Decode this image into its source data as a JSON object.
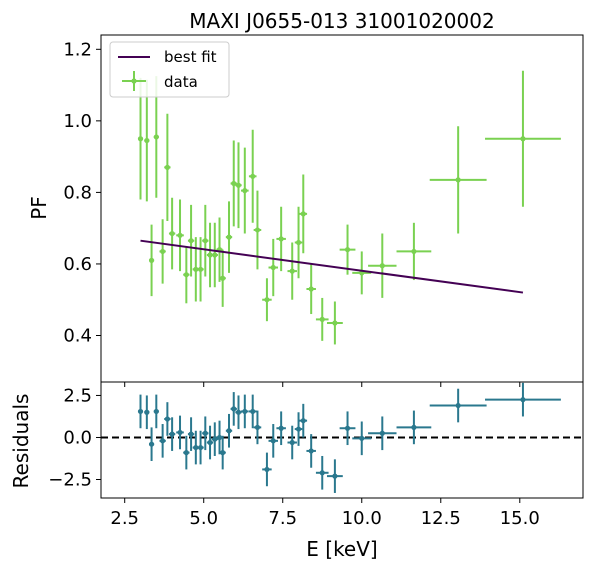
{
  "chart_data": {
    "type": "scatter",
    "title": "MAXI J0655-013 31001020002",
    "xlabel": "E [keV]",
    "xlim": [
      1.75,
      17.0
    ],
    "xticks": [
      2.5,
      5.0,
      7.5,
      10.0,
      12.5,
      15.0
    ],
    "xtick_labels": [
      "2.5",
      "5.0",
      "7.5",
      "10.0",
      "12.5",
      "15.0"
    ],
    "top_panel": {
      "ylabel": "PF",
      "ylim": [
        0.27,
        1.24
      ],
      "yticks": [
        0.4,
        0.6,
        0.8,
        1.0,
        1.2
      ],
      "ytick_labels": [
        "0.4",
        "0.6",
        "0.8",
        "1.0",
        "1.2"
      ],
      "legend": {
        "position": "upper-left",
        "fit_label": "best fit",
        "data_label": "data"
      },
      "fit_line": {
        "name": "best fit",
        "color": "#440154",
        "x": [
          3.0,
          15.1
        ],
        "y": [
          0.665,
          0.52
        ]
      },
      "data": {
        "name": "data",
        "color": "#7ad151",
        "points": [
          {
            "x": 3.0,
            "y": 0.95,
            "xerr": 0.08,
            "yerr": 0.17
          },
          {
            "x": 3.2,
            "y": 0.945,
            "xerr": 0.08,
            "yerr": 0.17
          },
          {
            "x": 3.35,
            "y": 0.61,
            "xerr": 0.08,
            "yerr": 0.1
          },
          {
            "x": 3.5,
            "y": 0.955,
            "xerr": 0.08,
            "yerr": 0.17
          },
          {
            "x": 3.7,
            "y": 0.635,
            "xerr": 0.1,
            "yerr": 0.09
          },
          {
            "x": 3.85,
            "y": 0.87,
            "xerr": 0.1,
            "yerr": 0.15
          },
          {
            "x": 4.0,
            "y": 0.685,
            "xerr": 0.1,
            "yerr": 0.1
          },
          {
            "x": 4.25,
            "y": 0.68,
            "xerr": 0.12,
            "yerr": 0.1
          },
          {
            "x": 4.45,
            "y": 0.57,
            "xerr": 0.1,
            "yerr": 0.08
          },
          {
            "x": 4.6,
            "y": 0.665,
            "xerr": 0.1,
            "yerr": 0.1
          },
          {
            "x": 4.75,
            "y": 0.585,
            "xerr": 0.1,
            "yerr": 0.09
          },
          {
            "x": 4.9,
            "y": 0.585,
            "xerr": 0.1,
            "yerr": 0.09
          },
          {
            "x": 5.05,
            "y": 0.665,
            "xerr": 0.1,
            "yerr": 0.1
          },
          {
            "x": 5.2,
            "y": 0.625,
            "xerr": 0.1,
            "yerr": 0.09
          },
          {
            "x": 5.35,
            "y": 0.625,
            "xerr": 0.1,
            "yerr": 0.09
          },
          {
            "x": 5.5,
            "y": 0.64,
            "xerr": 0.1,
            "yerr": 0.09
          },
          {
            "x": 5.6,
            "y": 0.56,
            "xerr": 0.1,
            "yerr": 0.08
          },
          {
            "x": 5.8,
            "y": 0.675,
            "xerr": 0.1,
            "yerr": 0.1
          },
          {
            "x": 5.95,
            "y": 0.825,
            "xerr": 0.1,
            "yerr": 0.12
          },
          {
            "x": 6.1,
            "y": 0.82,
            "xerr": 0.1,
            "yerr": 0.12
          },
          {
            "x": 6.3,
            "y": 0.805,
            "xerr": 0.12,
            "yerr": 0.12
          },
          {
            "x": 6.55,
            "y": 0.845,
            "xerr": 0.12,
            "yerr": 0.13
          },
          {
            "x": 6.7,
            "y": 0.695,
            "xerr": 0.12,
            "yerr": 0.11
          },
          {
            "x": 7.0,
            "y": 0.5,
            "xerr": 0.15,
            "yerr": 0.06
          },
          {
            "x": 7.2,
            "y": 0.59,
            "xerr": 0.15,
            "yerr": 0.08
          },
          {
            "x": 7.45,
            "y": 0.67,
            "xerr": 0.15,
            "yerr": 0.09
          },
          {
            "x": 7.8,
            "y": 0.58,
            "xerr": 0.15,
            "yerr": 0.08
          },
          {
            "x": 8.0,
            "y": 0.66,
            "xerr": 0.12,
            "yerr": 0.1
          },
          {
            "x": 8.15,
            "y": 0.74,
            "xerr": 0.12,
            "yerr": 0.11
          },
          {
            "x": 8.4,
            "y": 0.53,
            "xerr": 0.15,
            "yerr": 0.07
          },
          {
            "x": 8.75,
            "y": 0.445,
            "xerr": 0.2,
            "yerr": 0.06
          },
          {
            "x": 9.15,
            "y": 0.435,
            "xerr": 0.25,
            "yerr": 0.06
          },
          {
            "x": 9.55,
            "y": 0.64,
            "xerr": 0.25,
            "yerr": 0.07
          },
          {
            "x": 10.0,
            "y": 0.575,
            "xerr": 0.3,
            "yerr": 0.06
          },
          {
            "x": 10.65,
            "y": 0.595,
            "xerr": 0.45,
            "yerr": 0.09
          },
          {
            "x": 11.65,
            "y": 0.635,
            "xerr": 0.55,
            "yerr": 0.08
          },
          {
            "x": 13.05,
            "y": 0.835,
            "xerr": 0.9,
            "yerr": 0.15
          },
          {
            "x": 15.1,
            "y": 0.95,
            "xerr": 1.2,
            "yerr": 0.19
          }
        ]
      }
    },
    "bottom_panel": {
      "ylabel": "Residuals",
      "ylim": [
        -3.6,
        3.3
      ],
      "yticks": [
        -2.5,
        0.0,
        2.5
      ],
      "ytick_labels": [
        "−2.5",
        "0.0",
        "2.5"
      ],
      "zero_line": "dashed",
      "data": {
        "color": "#2a788e",
        "points": [
          {
            "x": 3.0,
            "y": 1.55,
            "xerr": 0.08,
            "yerr": 1.0
          },
          {
            "x": 3.2,
            "y": 1.5,
            "xerr": 0.08,
            "yerr": 1.0
          },
          {
            "x": 3.35,
            "y": -0.4,
            "xerr": 0.08,
            "yerr": 1.0
          },
          {
            "x": 3.5,
            "y": 1.55,
            "xerr": 0.08,
            "yerr": 1.0
          },
          {
            "x": 3.7,
            "y": -0.2,
            "xerr": 0.1,
            "yerr": 1.0
          },
          {
            "x": 3.85,
            "y": 1.1,
            "xerr": 0.1,
            "yerr": 1.0
          },
          {
            "x": 4.0,
            "y": 0.2,
            "xerr": 0.1,
            "yerr": 1.0
          },
          {
            "x": 4.25,
            "y": 0.3,
            "xerr": 0.12,
            "yerr": 1.0
          },
          {
            "x": 4.45,
            "y": -0.9,
            "xerr": 0.1,
            "yerr": 1.0
          },
          {
            "x": 4.6,
            "y": 0.2,
            "xerr": 0.1,
            "yerr": 1.0
          },
          {
            "x": 4.75,
            "y": -0.6,
            "xerr": 0.1,
            "yerr": 1.0
          },
          {
            "x": 4.9,
            "y": -0.6,
            "xerr": 0.1,
            "yerr": 1.0
          },
          {
            "x": 5.05,
            "y": 0.25,
            "xerr": 0.1,
            "yerr": 1.0
          },
          {
            "x": 5.2,
            "y": -0.3,
            "xerr": 0.1,
            "yerr": 1.0
          },
          {
            "x": 5.35,
            "y": -0.1,
            "xerr": 0.1,
            "yerr": 1.0
          },
          {
            "x": 5.5,
            "y": 0.0,
            "xerr": 0.1,
            "yerr": 1.0
          },
          {
            "x": 5.6,
            "y": -0.9,
            "xerr": 0.1,
            "yerr": 1.0
          },
          {
            "x": 5.8,
            "y": 0.4,
            "xerr": 0.1,
            "yerr": 1.0
          },
          {
            "x": 5.95,
            "y": 1.7,
            "xerr": 0.1,
            "yerr": 1.0
          },
          {
            "x": 6.1,
            "y": 1.5,
            "xerr": 0.1,
            "yerr": 1.0
          },
          {
            "x": 6.3,
            "y": 1.55,
            "xerr": 0.12,
            "yerr": 1.0
          },
          {
            "x": 6.55,
            "y": 1.55,
            "xerr": 0.12,
            "yerr": 1.0
          },
          {
            "x": 6.7,
            "y": 0.6,
            "xerr": 0.12,
            "yerr": 1.0
          },
          {
            "x": 7.0,
            "y": -1.9,
            "xerr": 0.15,
            "yerr": 1.0
          },
          {
            "x": 7.2,
            "y": -0.2,
            "xerr": 0.15,
            "yerr": 1.0
          },
          {
            "x": 7.45,
            "y": 0.55,
            "xerr": 0.15,
            "yerr": 1.0
          },
          {
            "x": 7.8,
            "y": -0.3,
            "xerr": 0.15,
            "yerr": 1.0
          },
          {
            "x": 8.0,
            "y": 0.5,
            "xerr": 0.12,
            "yerr": 1.0
          },
          {
            "x": 8.15,
            "y": 1.0,
            "xerr": 0.12,
            "yerr": 1.0
          },
          {
            "x": 8.4,
            "y": -0.8,
            "xerr": 0.15,
            "yerr": 1.0
          },
          {
            "x": 8.75,
            "y": -2.1,
            "xerr": 0.2,
            "yerr": 1.0
          },
          {
            "x": 9.15,
            "y": -2.3,
            "xerr": 0.25,
            "yerr": 1.0
          },
          {
            "x": 9.55,
            "y": 0.55,
            "xerr": 0.25,
            "yerr": 1.0
          },
          {
            "x": 10.0,
            "y": -0.05,
            "xerr": 0.3,
            "yerr": 1.0
          },
          {
            "x": 10.65,
            "y": 0.25,
            "xerr": 0.45,
            "yerr": 1.0
          },
          {
            "x": 11.65,
            "y": 0.6,
            "xerr": 0.55,
            "yerr": 1.0
          },
          {
            "x": 13.05,
            "y": 1.9,
            "xerr": 0.9,
            "yerr": 1.0
          },
          {
            "x": 15.1,
            "y": 2.25,
            "xerr": 1.2,
            "yerr": 1.0
          }
        ]
      }
    }
  }
}
